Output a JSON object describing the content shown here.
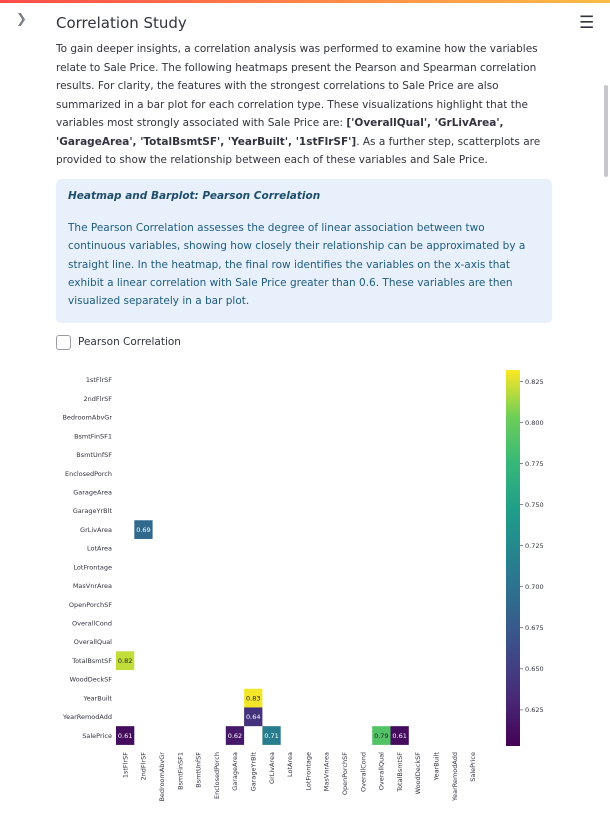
{
  "page": {
    "title": "Correlation Study"
  },
  "intro": {
    "text_before": "To gain deeper insights, a correlation analysis was performed to examine how the variables relate to Sale Price. The following heatmaps present the Pearson and Spearman correlation results. For clarity, the features with the strongest correlations to Sale Price are also summarized in a bar plot for each correlation type. These visualizations highlight that the variables most strongly associated with Sale Price are: ",
    "bold_vars": "['OverallQual', 'GrLivArea', 'GarageArea', 'TotalBsmtSF', 'YearBuilt', '1stFlrSF']",
    "text_after": ". As a further step, scatterplots are provided to show the relationship between each of these variables and Sale Price."
  },
  "info_box": {
    "heading": "Heatmap and Barplot: Pearson Correlation",
    "body": "The Pearson Correlation assesses the degree of linear association between two continuous variables, showing how closely their relationship can be approximated by a straight line. In the heatmap, the final row identifies the variables on the x-axis that exhibit a linear correlation with Sale Price greater than 0.6. These variables are then visualized separately in a bar plot."
  },
  "checkbox": {
    "label": "Pearson Correlation",
    "checked": false
  },
  "chart_data": {
    "type": "heatmap",
    "rows": [
      "1stFlrSF",
      "2ndFlrSF",
      "BedroomAbvGr",
      "BsmtFinSF1",
      "BsmtUnfSF",
      "EnclosedPorch",
      "GarageArea",
      "GarageYrBlt",
      "GrLivArea",
      "LotArea",
      "LotFrontage",
      "MasVnrArea",
      "OpenPorchSF",
      "OverallCond",
      "OverallQual",
      "TotalBsmtSF",
      "WoodDeckSF",
      "YearBuilt",
      "YearRemodAdd",
      "SalePrice"
    ],
    "columns": [
      "1stFlrSF",
      "2ndFlrSF",
      "BedroomAbvGr",
      "BsmtFinSF1",
      "BsmtUnfSF",
      "EnclosedPorch",
      "GarageArea",
      "GarageYrBlt",
      "GrLivArea",
      "LotArea",
      "LotFrontage",
      "MasVnrArea",
      "OpenPorchSF",
      "OverallCond",
      "OverallQual",
      "TotalBsmtSF",
      "WoodDeckSF",
      "YearBuilt",
      "YearRemodAdd",
      "SalePrice"
    ],
    "cells": [
      {
        "row": "GrLivArea",
        "col": "2ndFlrSF",
        "value": 0.69,
        "label": "0.69"
      },
      {
        "row": "TotalBsmtSF",
        "col": "1stFlrSF",
        "value": 0.82,
        "label": "0.82"
      },
      {
        "row": "YearBuilt",
        "col": "GarageYrBlt",
        "value": 0.83,
        "label": "0.83"
      },
      {
        "row": "YearRemodAdd",
        "col": "GarageYrBlt",
        "value": 0.64,
        "label": "0.64"
      },
      {
        "row": "SalePrice",
        "col": "1stFlrSF",
        "value": 0.61,
        "label": "0.61"
      },
      {
        "row": "SalePrice",
        "col": "GarageArea",
        "value": 0.62,
        "label": "0.62"
      },
      {
        "row": "SalePrice",
        "col": "GrLivArea",
        "value": 0.71,
        "label": "0.71"
      },
      {
        "row": "SalePrice",
        "col": "OverallQual",
        "value": 0.79,
        "label": "0.79"
      },
      {
        "row": "SalePrice",
        "col": "TotalBsmtSF",
        "value": 0.61,
        "label": "0.61"
      }
    ],
    "colorbar": {
      "min": 0.603,
      "max": 0.832,
      "ticks": [
        "0.625",
        "0.650",
        "0.675",
        "0.700",
        "0.725",
        "0.750",
        "0.775",
        "0.800",
        "0.825"
      ],
      "colormap": "viridis"
    }
  }
}
